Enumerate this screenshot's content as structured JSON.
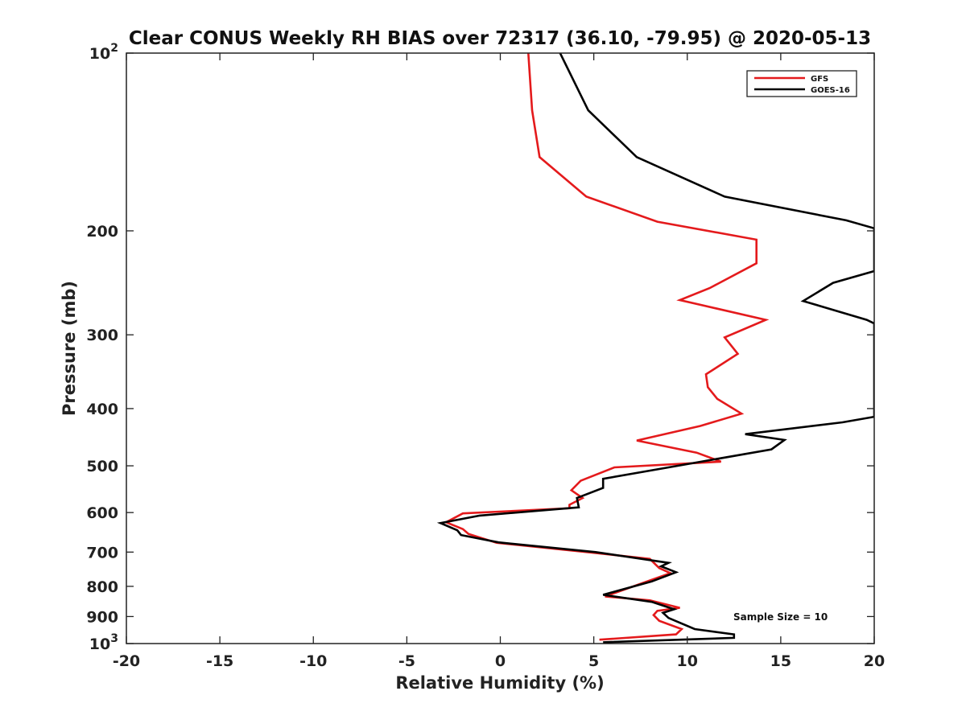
{
  "chart_data": {
    "type": "line",
    "title": "Clear CONUS Weekly RH BIAS over 72317 (36.10, -79.95) @ 2020-05-13",
    "xlabel": "Relative Humidity (%)",
    "ylabel": "Pressure (mb)",
    "xlim": [
      -20,
      20
    ],
    "ylim": [
      100,
      1000
    ],
    "y_scale": "log",
    "y_reversed": true,
    "grid": false,
    "legend_position": "top-right",
    "x_ticks": [
      -20,
      -15,
      -10,
      -5,
      0,
      5,
      10,
      15,
      20
    ],
    "x_tick_labels": [
      "-20",
      "-15",
      "-10",
      "-5",
      "0",
      "5",
      "10",
      "15",
      "20"
    ],
    "y_ticks": [
      100,
      200,
      300,
      400,
      500,
      600,
      700,
      800,
      900,
      1000
    ],
    "y_tick_labels": [
      {
        "base": "10",
        "exp": "2"
      },
      {
        "base": "200",
        "exp": ""
      },
      {
        "base": "300",
        "exp": ""
      },
      {
        "base": "400",
        "exp": ""
      },
      {
        "base": "500",
        "exp": ""
      },
      {
        "base": "600",
        "exp": ""
      },
      {
        "base": "700",
        "exp": ""
      },
      {
        "base": "800",
        "exp": ""
      },
      {
        "base": "900",
        "exp": ""
      },
      {
        "base": "10",
        "exp": "3"
      }
    ],
    "annotations": [
      {
        "text": "Sample Size = 10"
      }
    ],
    "series": [
      {
        "name": "GFS",
        "color": "#e41a1c",
        "points": [
          [
            1.5,
            100
          ],
          [
            1.7,
            125
          ],
          [
            2.1,
            150
          ],
          [
            4.6,
            175
          ],
          [
            8.4,
            193
          ],
          [
            13.7,
            207
          ],
          [
            13.7,
            227
          ],
          [
            11.2,
            250
          ],
          [
            9.6,
            262
          ],
          [
            14.2,
            283
          ],
          [
            12.0,
            303
          ],
          [
            12.7,
            323
          ],
          [
            11.0,
            350
          ],
          [
            11.1,
            368
          ],
          [
            11.6,
            385
          ],
          [
            12.9,
            408
          ],
          [
            10.7,
            428
          ],
          [
            7.3,
            453
          ],
          [
            10.5,
            475
          ],
          [
            11.8,
            492
          ],
          [
            6.1,
            503
          ],
          [
            4.3,
            530
          ],
          [
            3.8,
            550
          ],
          [
            4.4,
            567
          ],
          [
            3.7,
            582
          ],
          [
            3.7,
            590
          ],
          [
            -2.0,
            602
          ],
          [
            -2.9,
            623
          ],
          [
            -2.0,
            640
          ],
          [
            -1.7,
            652
          ],
          [
            -0.2,
            675
          ],
          [
            5.0,
            702
          ],
          [
            8.0,
            719
          ],
          [
            8.5,
            745
          ],
          [
            9.1,
            760
          ],
          [
            7.6,
            790
          ],
          [
            5.6,
            832
          ],
          [
            8.0,
            845
          ],
          [
            9.6,
            870
          ],
          [
            8.4,
            880
          ],
          [
            8.2,
            895
          ],
          [
            8.5,
            915
          ],
          [
            9.7,
            945
          ],
          [
            9.4,
            965
          ],
          [
            5.3,
            985
          ]
        ]
      },
      {
        "name": "GOES-16",
        "color": "#000000",
        "points": [
          [
            3.2,
            100
          ],
          [
            4.7,
            125
          ],
          [
            7.3,
            150
          ],
          [
            12.0,
            175
          ],
          [
            18.5,
            192
          ],
          [
            20,
            198
          ],
          [
            20,
            234
          ],
          [
            17.8,
            245
          ],
          [
            16.2,
            263
          ],
          [
            19.6,
            283
          ],
          [
            20,
            287
          ],
          [
            20,
            413
          ],
          [
            18.3,
            422
          ],
          [
            13.1,
            442
          ],
          [
            15.2,
            452
          ],
          [
            14.5,
            469
          ],
          [
            9.0,
            503
          ],
          [
            5.5,
            526
          ],
          [
            5.5,
            545
          ],
          [
            4.1,
            567
          ],
          [
            4.2,
            588
          ],
          [
            -1.1,
            607
          ],
          [
            -3.2,
            625
          ],
          [
            -2.3,
            643
          ],
          [
            -2.1,
            655
          ],
          [
            -0.1,
            674
          ],
          [
            5.1,
            700
          ],
          [
            9.0,
            730
          ],
          [
            8.6,
            740
          ],
          [
            9.4,
            757
          ],
          [
            8.1,
            785
          ],
          [
            5.5,
            827
          ],
          [
            8.1,
            850
          ],
          [
            9.3,
            875
          ],
          [
            8.7,
            887
          ],
          [
            9.0,
            905
          ],
          [
            10.4,
            945
          ],
          [
            12.5,
            965
          ],
          [
            12.5,
            978
          ],
          [
            5.5,
            995
          ]
        ]
      }
    ]
  }
}
